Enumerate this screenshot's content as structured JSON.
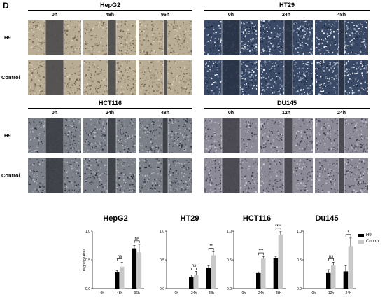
{
  "panel_label": "D",
  "blocks": [
    {
      "title": "HepG2",
      "columns": [
        "0h",
        "48h",
        "96h"
      ],
      "rows": [
        "H9",
        "Control"
      ],
      "style": "beige"
    },
    {
      "title": "HT29",
      "columns": [
        "0h",
        "24h",
        "48h"
      ],
      "rows": [
        "",
        ""
      ],
      "style": "blue"
    },
    {
      "title": "HCT116",
      "columns": [
        "0h",
        "24h",
        "48h"
      ],
      "rows": [
        "H9",
        "Control"
      ],
      "style": "grey"
    },
    {
      "title": "DU145",
      "columns": [
        "0h",
        "12h",
        "24h"
      ],
      "rows": [
        "",
        ""
      ],
      "style": "purple"
    }
  ],
  "colors": {
    "h9": "#000000",
    "control": "#c8c8c8"
  },
  "chart_data": [
    {
      "type": "bar",
      "title": "HepG2",
      "categories": [
        "0h",
        "48h",
        "96h"
      ],
      "ylabel": "Migration Area",
      "ylim": [
        0,
        1.0
      ],
      "yticks": [
        "0.0",
        "0.5",
        "1.0"
      ],
      "series": [
        {
          "name": "H9",
          "values": [
            0,
            0.28,
            0.7
          ],
          "errors": [
            0,
            0.03,
            0.05
          ]
        },
        {
          "name": "Control",
          "values": [
            0,
            0.38,
            0.63
          ],
          "errors": [
            0,
            0.08,
            0.14
          ]
        }
      ],
      "annotations": [
        {
          "category": "48h",
          "text": "ns"
        },
        {
          "category": "96h",
          "text": "ns"
        }
      ]
    },
    {
      "type": "bar",
      "title": "HT29",
      "categories": [
        "0h",
        "24h",
        "48h"
      ],
      "ylim": [
        0,
        1.0
      ],
      "yticks": [
        "0.0",
        "0.5",
        "1.0"
      ],
      "series": [
        {
          "name": "H9",
          "values": [
            0,
            0.2,
            0.36
          ],
          "errors": [
            0,
            0.04,
            0.04
          ]
        },
        {
          "name": "Control",
          "values": [
            0,
            0.24,
            0.58
          ],
          "errors": [
            0,
            0.06,
            0.06
          ]
        }
      ],
      "annotations": [
        {
          "category": "24h",
          "text": "ns"
        },
        {
          "category": "48h",
          "text": "**"
        }
      ]
    },
    {
      "type": "bar",
      "title": "HCT116",
      "categories": [
        "0h",
        "24h",
        "48h"
      ],
      "ylim": [
        0,
        1.0
      ],
      "yticks": [
        "0.0",
        "0.5",
        "1.0"
      ],
      "series": [
        {
          "name": "H9",
          "values": [
            0,
            0.27,
            0.53
          ],
          "errors": [
            0,
            0.02,
            0.03
          ]
        },
        {
          "name": "Control",
          "values": [
            0,
            0.52,
            0.94
          ],
          "errors": [
            0,
            0.04,
            0.05
          ]
        }
      ],
      "annotations": [
        {
          "category": "24h",
          "text": "***"
        },
        {
          "category": "48h",
          "text": "****"
        }
      ]
    },
    {
      "type": "bar",
      "title": "Du145",
      "categories": [
        "0h",
        "12h",
        "24h"
      ],
      "ylim": [
        0,
        1.0
      ],
      "yticks": [
        "0.0",
        "0.5",
        "1.0"
      ],
      "series": [
        {
          "name": "H9",
          "values": [
            0,
            0.27,
            0.3
          ],
          "errors": [
            0,
            0.06,
            0.1
          ]
        },
        {
          "name": "Control",
          "values": [
            0,
            0.4,
            0.74
          ],
          "errors": [
            0,
            0.06,
            0.14
          ]
        }
      ],
      "annotations": [
        {
          "category": "12h",
          "text": "ns"
        },
        {
          "category": "24h",
          "text": "*"
        }
      ],
      "legend": {
        "position": "right",
        "entries": [
          "H9",
          "Control"
        ]
      }
    }
  ]
}
